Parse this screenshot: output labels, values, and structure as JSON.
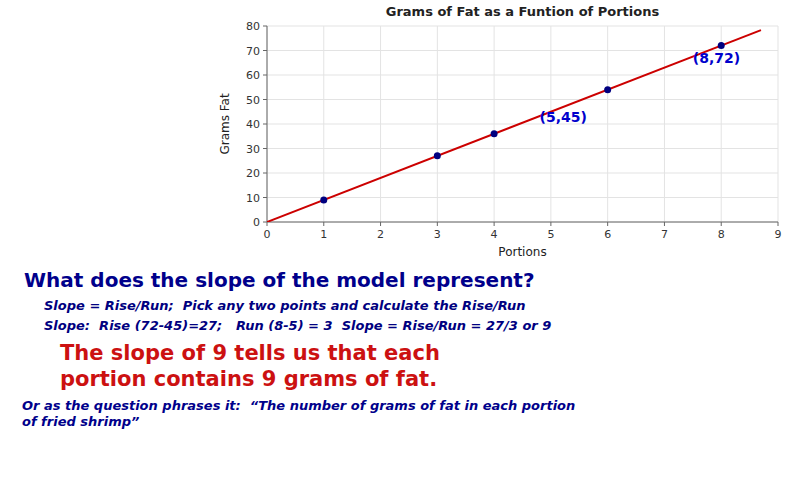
{
  "chart_data": {
    "type": "scatter",
    "title": "Grams of Fat as a Funtion of Portions",
    "x_label": "Portions",
    "y_label": "Grams Fat",
    "series": [
      {
        "type": "scatter",
        "color": "#000080",
        "x": [
          1,
          3,
          4,
          6,
          8
        ],
        "values": [
          9,
          27,
          36,
          54,
          72
        ]
      },
      {
        "type": "line",
        "color": "#CC0000",
        "x": [
          0,
          8.7
        ],
        "values": [
          0,
          78.3
        ]
      }
    ],
    "annotations": [
      {
        "text": "(5,45)",
        "x": 4.8,
        "y": 41,
        "color": "#0000CC"
      },
      {
        "text": "(8,72)",
        "x": 7.5,
        "y": 65,
        "color": "#0000CC"
      }
    ],
    "xlim": [
      0,
      9
    ],
    "ylim": [
      0,
      80
    ],
    "xticks": [
      0,
      1,
      2,
      3,
      4,
      5,
      6,
      7,
      8,
      9
    ],
    "yticks": [
      0,
      10,
      20,
      30,
      40,
      50,
      60,
      70,
      80
    ],
    "grid": true
  },
  "text_blocks": [
    {
      "text": "What does the slope of the model represent?",
      "color": "#00008B"
    },
    {
      "text": "Slope = Rise/Run;  Pick any two points and calculate the Rise/Run",
      "color": "#000080"
    },
    {
      "text": "Slope:  Rise (72-45)=27;   Run (8-5) = 3  Slope = Rise/Run = 27/3 or 9",
      "color": "#000080"
    },
    {
      "text": "The slope of 9 tells us that each",
      "color": "#CC1111"
    },
    {
      "text": "portion contains 9 grams of fat.",
      "color": "#CC1111"
    },
    {
      "text": "Or as the question phrases it:  “The number of grams of fat in each portion\nof fried shrimp”",
      "color": "#00008B"
    }
  ]
}
